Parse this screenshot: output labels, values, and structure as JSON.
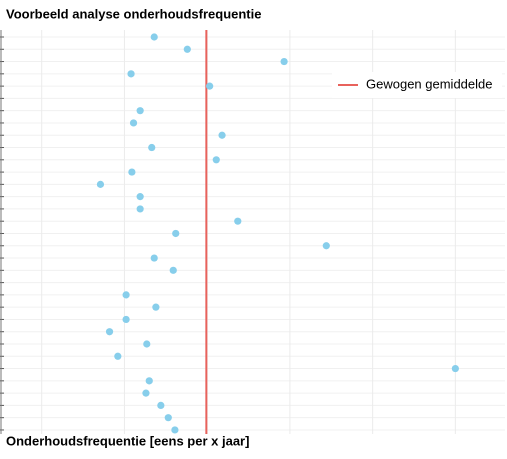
{
  "chart_data": {
    "type": "dot",
    "title": "Voorbeeld analyse onderhoudsfrequentie",
    "x_label": "Onderhoudsfrequentie [eens per x jaar]",
    "categories": [
      null,
      null,
      null,
      null,
      null,
      null,
      null,
      null,
      null,
      null,
      null,
      null,
      null,
      null,
      null,
      null,
      null,
      null,
      null,
      null,
      null,
      null,
      null,
      null,
      null,
      null,
      null,
      null,
      null,
      null,
      null,
      null,
      null
    ],
    "values": [
      2.36,
      2.76,
      3.93,
      2.08,
      3.03,
      null,
      2.19,
      2.11,
      3.18,
      2.33,
      3.11,
      2.09,
      1.71,
      2.19,
      2.19,
      3.37,
      2.62,
      4.44,
      2.36,
      2.59,
      null,
      2.02,
      2.38,
      2.02,
      1.82,
      2.27,
      1.92,
      6.0,
      2.3,
      2.26,
      2.44,
      2.53,
      2.61
    ],
    "color": "#87ceeb",
    "xlim": [
      0.52,
      6.6
    ],
    "xticks": [
      1,
      2,
      3,
      4,
      5,
      6
    ],
    "reference_line": {
      "name": "Gewogen gemiddelde",
      "value": 2.99,
      "color": "#e8625c"
    },
    "legend": "top-right",
    "grid": true
  }
}
